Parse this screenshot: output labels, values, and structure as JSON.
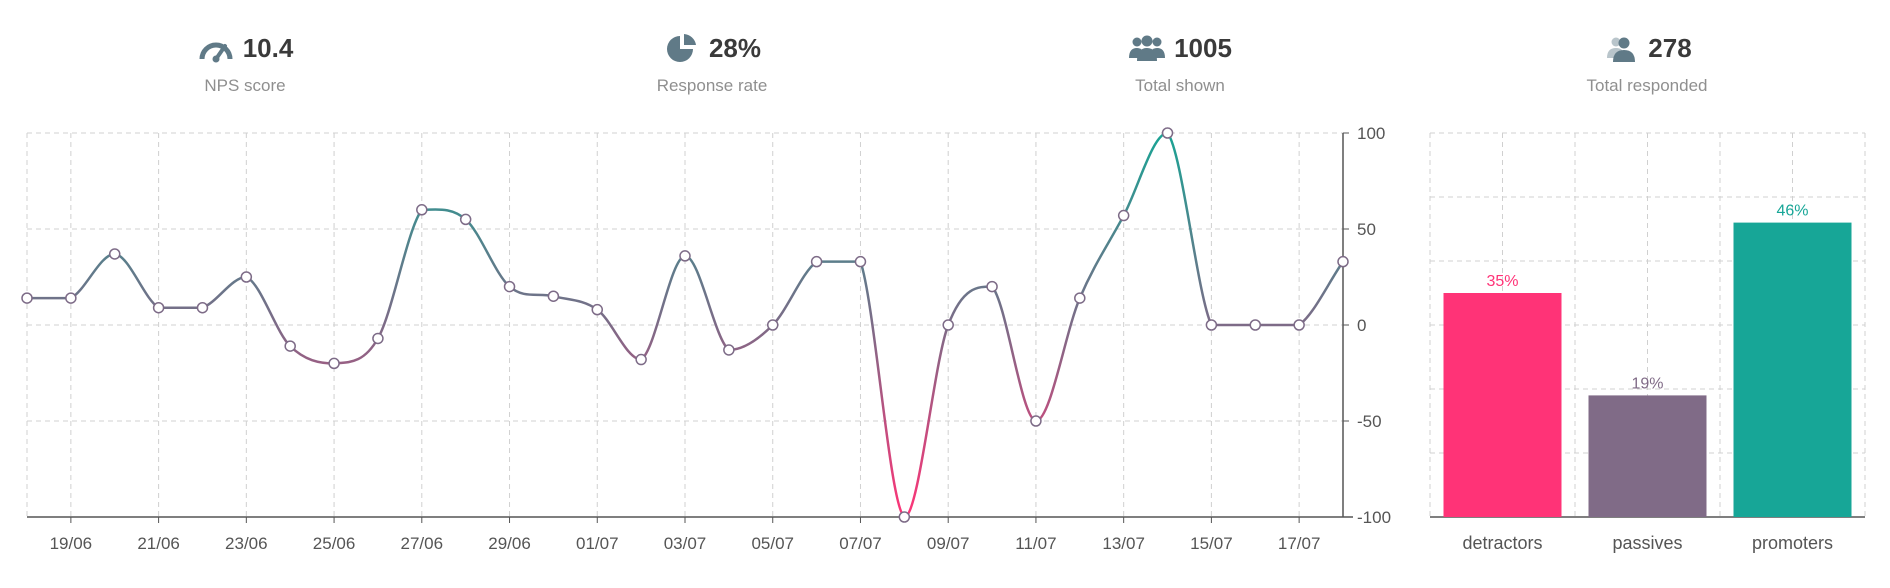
{
  "stats": [
    {
      "icon": "gauge-icon",
      "value": "10.4",
      "label": "NPS score"
    },
    {
      "icon": "pie-chart-icon",
      "value": "28%",
      "label": "Response rate"
    },
    {
      "icon": "users-icon",
      "value": "1005",
      "label": "Total shown"
    },
    {
      "icon": "user-responded-icon",
      "value": "278",
      "label": "Total responded"
    }
  ],
  "chart_data": [
    {
      "type": "line",
      "x": [
        "18/06",
        "19/06",
        "20/06",
        "21/06",
        "22/06",
        "23/06",
        "24/06",
        "25/06",
        "26/06",
        "27/06",
        "28/06",
        "29/06",
        "30/06",
        "01/07",
        "02/07",
        "03/07",
        "04/07",
        "05/07",
        "06/07",
        "07/07",
        "08/07",
        "09/07",
        "10/07",
        "11/07",
        "12/07",
        "13/07",
        "14/07",
        "15/07",
        "16/07",
        "17/07"
      ],
      "series": [
        {
          "values": [
            14,
            37,
            9,
            9,
            25,
            -11,
            -20,
            -7,
            60,
            55,
            20,
            15,
            8,
            -18,
            36,
            -13,
            0,
            33,
            33,
            -100,
            0,
            20,
            -50,
            14,
            57,
            100,
            0,
            0,
            0,
            33
          ]
        }
      ],
      "first_value": 14,
      "x_tick_labels": [
        "19/06",
        "21/06",
        "23/06",
        "25/06",
        "27/06",
        "29/06",
        "01/07",
        "03/07",
        "05/07",
        "07/07",
        "09/07",
        "11/07",
        "13/07",
        "15/07",
        "17/07"
      ],
      "y_ticks": [
        100,
        50,
        0,
        -50,
        -100
      ],
      "ylim": [
        -100,
        100
      ],
      "grid": true,
      "colors": {
        "negative": "#ff3377",
        "neutral": "#7d6b87",
        "positive": "#1aa394"
      }
    },
    {
      "type": "bar",
      "categories": [
        "detractors",
        "passives",
        "promoters"
      ],
      "values": [
        35,
        19,
        46
      ],
      "value_labels": [
        "35%",
        "19%",
        "46%"
      ],
      "colors": [
        "#ff3377",
        "#806b87",
        "#17a697"
      ],
      "ylim": [
        0,
        60
      ],
      "grid": true
    }
  ]
}
